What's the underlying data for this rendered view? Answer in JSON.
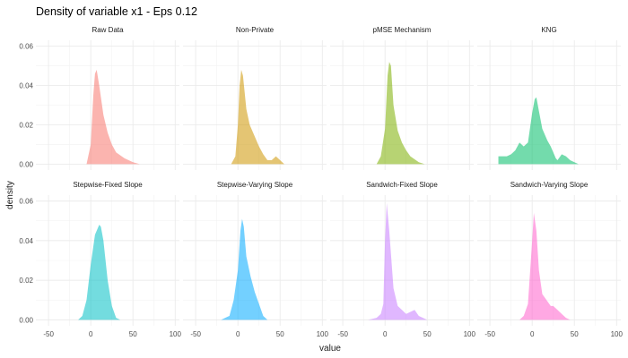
{
  "chart_data": {
    "type": "area",
    "title": "Density of variable x1 - Eps 0.12",
    "xlabel": "value",
    "ylabel": "density",
    "xlim": [
      -65,
      105
    ],
    "ylim": [
      -0.003,
      0.063
    ],
    "x_ticks": [
      -50,
      0,
      50,
      100
    ],
    "x_tick_labels": [
      "-50",
      "0",
      "50",
      "100"
    ],
    "y_ticks": [
      0.0,
      0.02,
      0.04,
      0.06
    ],
    "y_tick_labels": [
      "0.00",
      "0.02",
      "0.04",
      "0.06"
    ],
    "grid": true,
    "legend": "none",
    "panels": [
      {
        "name": "Raw Data",
        "color": "#F8766D",
        "x": [
          -5,
          0,
          3,
          5,
          7,
          10,
          15,
          20,
          25,
          30,
          40,
          50,
          58
        ],
        "y": [
          0.0,
          0.01,
          0.035,
          0.046,
          0.048,
          0.04,
          0.025,
          0.016,
          0.01,
          0.006,
          0.003,
          0.001,
          0.0
        ]
      },
      {
        "name": "Non-Private",
        "color": "#CD9600",
        "x": [
          -8,
          -3,
          0,
          2,
          4,
          6,
          10,
          14,
          20,
          25,
          30,
          35,
          40,
          45,
          50,
          55
        ],
        "y": [
          0.0,
          0.004,
          0.02,
          0.04,
          0.048,
          0.045,
          0.028,
          0.02,
          0.014,
          0.009,
          0.005,
          0.002,
          0.002,
          0.004,
          0.002,
          0.0
        ]
      },
      {
        "name": "pMSE Mechanism",
        "color": "#7CAE00",
        "x": [
          -10,
          -5,
          0,
          3,
          5,
          7,
          10,
          15,
          20,
          25,
          30,
          40,
          47
        ],
        "y": [
          0.0,
          0.004,
          0.018,
          0.045,
          0.052,
          0.05,
          0.03,
          0.017,
          0.011,
          0.007,
          0.004,
          0.001,
          0.0
        ]
      },
      {
        "name": "KNG",
        "color": "#00BE67",
        "x": [
          -40,
          -30,
          -25,
          -20,
          -15,
          -10,
          -5,
          0,
          3,
          5,
          8,
          12,
          18,
          22,
          28,
          30,
          35,
          40,
          45,
          50,
          55
        ],
        "y": [
          0.004,
          0.004,
          0.005,
          0.007,
          0.011,
          0.009,
          0.011,
          0.026,
          0.033,
          0.034,
          0.027,
          0.018,
          0.012,
          0.009,
          0.003,
          0.002,
          0.005,
          0.004,
          0.002,
          0.001,
          0.0
        ]
      },
      {
        "name": "Stepwise-Fixed Slope",
        "color": "#00BFC4",
        "x": [
          -15,
          -10,
          -5,
          0,
          5,
          10,
          12,
          15,
          20,
          25,
          30,
          35
        ],
        "y": [
          0.0,
          0.002,
          0.01,
          0.028,
          0.043,
          0.048,
          0.047,
          0.04,
          0.02,
          0.007,
          0.001,
          0.0
        ]
      },
      {
        "name": "Stepwise-Varying Slope",
        "color": "#00A9FF",
        "x": [
          -20,
          -10,
          -5,
          0,
          3,
          5,
          7,
          10,
          15,
          20,
          25,
          30,
          35
        ],
        "y": [
          0.0,
          0.002,
          0.01,
          0.025,
          0.045,
          0.051,
          0.047,
          0.032,
          0.022,
          0.014,
          0.008,
          0.002,
          0.0
        ]
      },
      {
        "name": "Sandwich-Fixed Slope",
        "color": "#C77CFF",
        "x": [
          -20,
          -10,
          -5,
          -2,
          0,
          2,
          5,
          10,
          15,
          20,
          25,
          30,
          35,
          40,
          50
        ],
        "y": [
          0.0,
          0.001,
          0.003,
          0.008,
          0.04,
          0.059,
          0.045,
          0.016,
          0.007,
          0.005,
          0.003,
          0.004,
          0.005,
          0.002,
          0.0
        ]
      },
      {
        "name": "Sandwich-Varying Slope",
        "color": "#FF61CC",
        "x": [
          -15,
          -10,
          -5,
          0,
          2,
          5,
          8,
          12,
          17,
          22,
          25,
          30,
          35,
          40,
          45
        ],
        "y": [
          0.0,
          0.002,
          0.008,
          0.04,
          0.054,
          0.045,
          0.025,
          0.013,
          0.01,
          0.007,
          0.007,
          0.005,
          0.003,
          0.001,
          0.0
        ]
      }
    ]
  }
}
